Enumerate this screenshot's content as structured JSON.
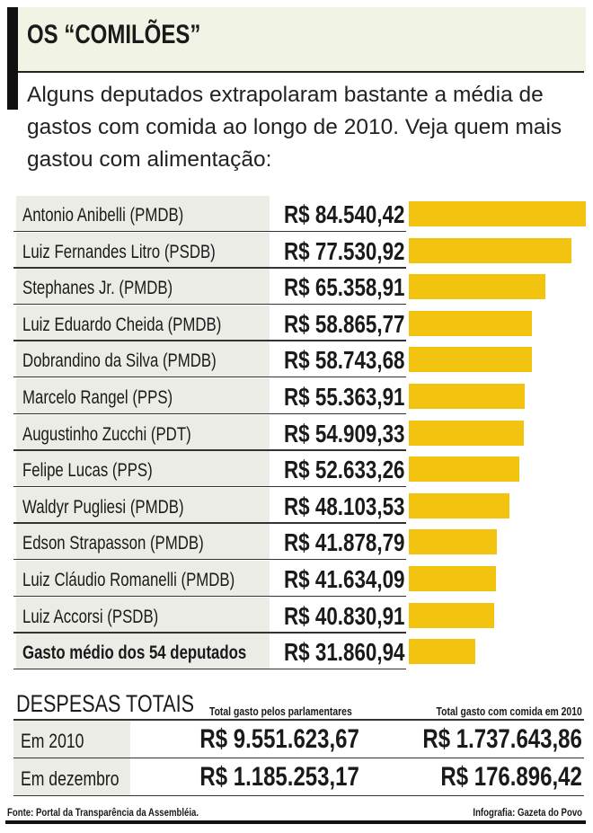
{
  "title": "OS “COMILÕES”",
  "intro": "Alguns deputados extrapolaram bastante a média de gastos com comida ao longo de 2010. Veja quem mais gastou com alimentação:",
  "colors": {
    "bar": "#f2c40f",
    "band": "#f1f3e4",
    "label_bg": "#ebece5"
  },
  "chart_data": {
    "type": "bar",
    "orientation": "horizontal",
    "categories": [
      "Antonio Anibelli (PMDB)",
      "Luiz Fernandes Litro (PSDB)",
      "Stephanes Jr. (PMDB)",
      "Luiz Eduardo Cheida (PMDB)",
      "Dobrandino da Silva (PMDB)",
      "Marcelo Rangel (PPS)",
      "Augustinho Zucchi (PDT)",
      "Felipe Lucas (PPS)",
      "Waldyr Pugliesi (PMDB)",
      "Edson Strapasson (PMDB)",
      "Luiz Cláudio Romanelli (PMDB)",
      "Luiz Accorsi (PSDB)",
      "Gasto médio dos 54 deputados"
    ],
    "values": [
      84540.42,
      77530.92,
      65358.91,
      58865.77,
      58743.68,
      55363.91,
      54909.33,
      52633.26,
      48103.53,
      41878.79,
      41634.09,
      40830.91,
      31860.94
    ],
    "labels": [
      "R$ 84.540,42",
      "R$ 77.530,92",
      "R$ 65.358,91",
      "R$ 58.865,77",
      "R$ 58.743,68",
      "R$ 55.363,91",
      "R$ 54.909,33",
      "R$ 52.633,26",
      "R$ 48.103,53",
      "R$ 41.878,79",
      "R$ 41.634,09",
      "R$ 40.830,91",
      "R$ 31.860,94"
    ]
  },
  "totals": {
    "title": "DESPESAS TOTAIS",
    "col1": "Total gasto pelos parlamentares",
    "col2": "Total gasto com comida em 2010",
    "rows": [
      {
        "label": "Em 2010",
        "v1": "R$ 9.551.623,67",
        "v2": "R$ 1.737.643,86"
      },
      {
        "label": "Em dezembro",
        "v1": "R$ 1.185.253,17",
        "v2": "R$ 176.896,42"
      }
    ]
  },
  "footer": {
    "source": "Fonte: Portal da Transparência da Assembléia.",
    "credit": "Infografia: Gazeta do Povo"
  }
}
